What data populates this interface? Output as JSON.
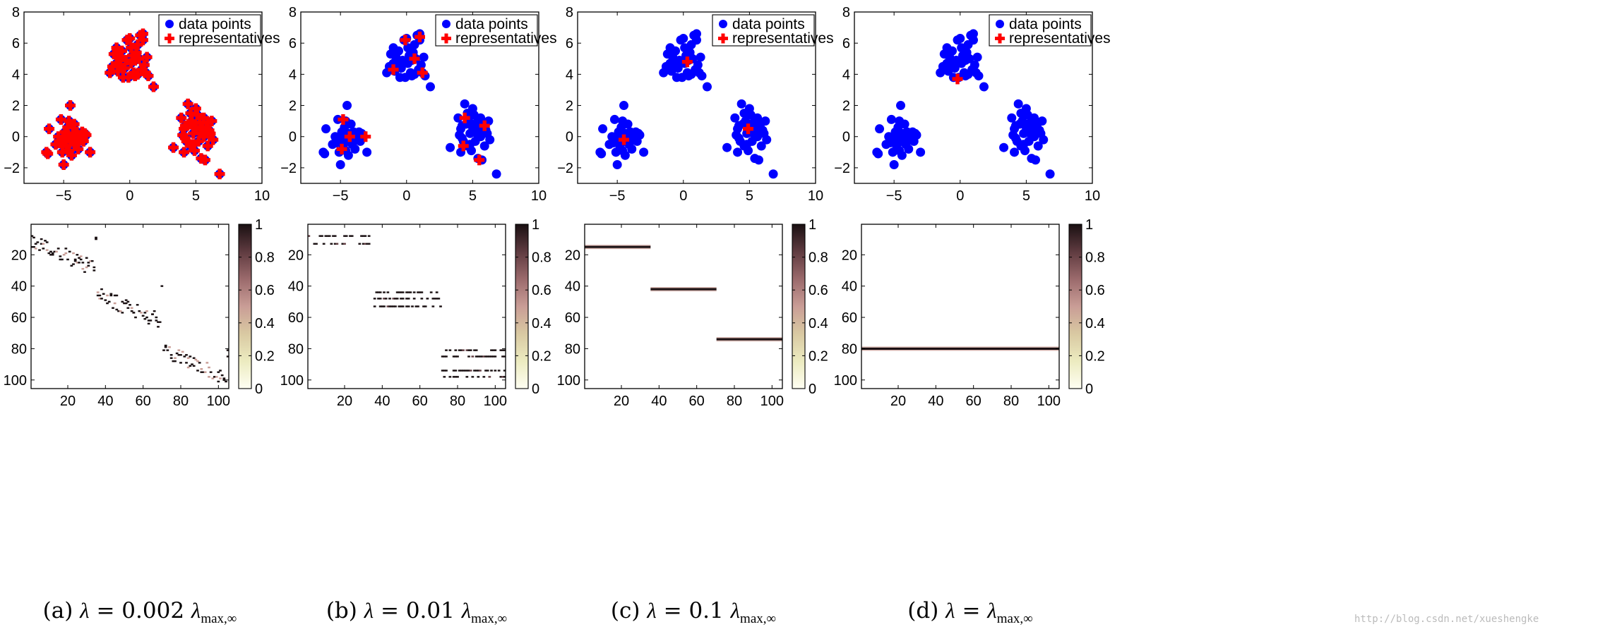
{
  "colors": {
    "data_points": "#0000ff",
    "representatives": "#ff0000",
    "colormap": [
      "#fefef2",
      "#ecebc0",
      "#d9c9a2",
      "#c99d96",
      "#9b6a6c",
      "#5f3b40",
      "#1a1012"
    ]
  },
  "chart_data": [
    {
      "type": "scatter",
      "panel": "a-top",
      "xlim": [
        -8,
        10
      ],
      "ylim": [
        -3,
        8
      ],
      "xticks": [
        "−5",
        "0",
        "5",
        "10"
      ],
      "yticks": [
        "−2",
        "0",
        "2",
        "4",
        "6",
        "8"
      ],
      "legend": {
        "placement": "top-right",
        "entries": [
          "data points",
          "representatives"
        ]
      },
      "representatives": "all"
    },
    {
      "type": "scatter",
      "panel": "b-top",
      "xlim": [
        -8,
        10
      ],
      "ylim": [
        -3,
        8
      ],
      "xticks": [
        "−5",
        "0",
        "5",
        "10"
      ],
      "yticks": [
        "−2",
        "0",
        "2",
        "4",
        "6",
        "8"
      ],
      "legend": {
        "placement": "top-right",
        "entries": [
          "data points",
          "representatives"
        ]
      },
      "representatives": [
        [
          -0.1,
          6.2
        ],
        [
          1.0,
          6.4
        ],
        [
          -1.0,
          4.3
        ],
        [
          1.2,
          4.1
        ],
        [
          0.6,
          5.0
        ],
        [
          -4.8,
          1.1
        ],
        [
          -4.9,
          -0.8
        ],
        [
          -4.3,
          0.0
        ],
        [
          -3.1,
          0.0
        ],
        [
          4.4,
          1.2
        ],
        [
          4.3,
          -0.6
        ],
        [
          5.5,
          -1.5
        ],
        [
          5.9,
          0.7
        ]
      ]
    },
    {
      "type": "scatter",
      "panel": "c-top",
      "xlim": [
        -8,
        10
      ],
      "ylim": [
        -3,
        8
      ],
      "xticks": [
        "−5",
        "0",
        "5",
        "10"
      ],
      "yticks": [
        "−2",
        "0",
        "2",
        "4",
        "6",
        "8"
      ],
      "legend": {
        "placement": "top-right",
        "entries": [
          "data points",
          "representatives"
        ]
      },
      "representatives": [
        [
          0.3,
          4.8
        ],
        [
          -4.5,
          -0.2
        ],
        [
          4.9,
          0.5
        ]
      ]
    },
    {
      "type": "scatter",
      "panel": "d-top",
      "xlim": [
        -8,
        10
      ],
      "ylim": [
        -3,
        8
      ],
      "xticks": [
        "−5",
        "0",
        "5",
        "10"
      ],
      "yticks": [
        "−2",
        "0",
        "2",
        "4",
        "6",
        "8"
      ],
      "legend": {
        "placement": "top-right",
        "entries": [
          "data points",
          "representatives"
        ]
      },
      "representatives": [
        [
          -0.2,
          3.7
        ]
      ]
    },
    {
      "type": "heatmap",
      "panel": "a-bottom",
      "size": 105,
      "xticks": [
        "20",
        "40",
        "60",
        "80",
        "100"
      ],
      "yticks": [
        "20",
        "40",
        "60",
        "80",
        "100"
      ],
      "colorbar": {
        "range": [
          0,
          1
        ],
        "ticks": [
          "0",
          "0.2",
          "0.4",
          "0.6",
          "0.8",
          "1"
        ]
      },
      "pattern": "scattered diagonal"
    },
    {
      "type": "heatmap",
      "panel": "b-bottom",
      "size": 105,
      "xticks": [
        "20",
        "40",
        "60",
        "80",
        "100"
      ],
      "yticks": [
        "20",
        "40",
        "60",
        "80",
        "100"
      ],
      "colorbar": {
        "range": [
          0,
          1
        ],
        "ticks": [
          "0",
          "0.2",
          "0.4",
          "0.6",
          "0.8",
          "1"
        ]
      },
      "pattern": "row blocks",
      "row_blocks": [
        {
          "rows": [
            8,
            13
          ],
          "cols": [
            1,
            35
          ]
        },
        {
          "rows": [
            44,
            48,
            53
          ],
          "cols": [
            36,
            71
          ]
        },
        {
          "rows": [
            81,
            85,
            94,
            98
          ],
          "cols": [
            72,
            105
          ]
        }
      ]
    },
    {
      "type": "heatmap",
      "panel": "c-bottom",
      "size": 105,
      "xticks": [
        "20",
        "40",
        "60",
        "80",
        "100"
      ],
      "yticks": [
        "20",
        "40",
        "60",
        "80",
        "100"
      ],
      "colorbar": {
        "range": [
          0,
          1
        ],
        "ticks": [
          "0",
          "0.2",
          "0.4",
          "0.6",
          "0.8",
          "1"
        ]
      },
      "pattern": "single row lines",
      "lines": [
        {
          "row": 15,
          "cols": [
            1,
            35
          ]
        },
        {
          "row": 42,
          "cols": [
            36,
            70
          ]
        },
        {
          "row": 74,
          "cols": [
            71,
            105
          ]
        }
      ]
    },
    {
      "type": "heatmap",
      "panel": "d-bottom",
      "size": 105,
      "xticks": [
        "20",
        "40",
        "60",
        "80",
        "100"
      ],
      "yticks": [
        "20",
        "40",
        "60",
        "80",
        "100"
      ],
      "colorbar": {
        "range": [
          0,
          1
        ],
        "ticks": [
          "0",
          "0.2",
          "0.4",
          "0.6",
          "0.8",
          "1"
        ]
      },
      "pattern": "single row lines",
      "lines": [
        {
          "row": 80,
          "cols": [
            1,
            105
          ]
        }
      ]
    }
  ],
  "data_points": [
    [
      -6.1,
      0.5
    ],
    [
      -6.3,
      -1.0
    ],
    [
      -6.2,
      -1.1
    ],
    [
      -5.2,
      1.1
    ],
    [
      -5.3,
      -0.4
    ],
    [
      -5.1,
      -1.0
    ],
    [
      -5.0,
      -0.1
    ],
    [
      -4.9,
      0.3
    ],
    [
      -4.8,
      -0.6
    ],
    [
      -4.7,
      0.6
    ],
    [
      -4.6,
      1.0
    ],
    [
      -4.5,
      -0.2
    ],
    [
      -4.4,
      -1.2
    ],
    [
      -4.3,
      0.2
    ],
    [
      -4.2,
      -0.4
    ],
    [
      -4.5,
      2.0
    ],
    [
      -4.0,
      0.3
    ],
    [
      -3.9,
      -0.8
    ],
    [
      -3.8,
      0.0
    ],
    [
      -3.6,
      0.3
    ],
    [
      -3.5,
      -0.3
    ],
    [
      -3.3,
      0.1
    ],
    [
      -3.0,
      -1.0
    ],
    [
      -5.0,
      -1.8
    ],
    [
      -4.1,
      0.1
    ],
    [
      -4.8,
      0.1
    ],
    [
      -5.4,
      0.0
    ],
    [
      -3.7,
      -0.2
    ],
    [
      -4.2,
      0.8
    ],
    [
      -5.6,
      -0.5
    ],
    [
      -4.9,
      -0.3
    ],
    [
      -3.4,
      0.2
    ],
    [
      -4.6,
      -0.9
    ],
    [
      -4.1,
      -0.5
    ],
    [
      -1.5,
      4.1
    ],
    [
      -1.2,
      5.3
    ],
    [
      -1.0,
      5.7
    ],
    [
      -0.9,
      4.2
    ],
    [
      -0.8,
      5.1
    ],
    [
      -0.7,
      4.6
    ],
    [
      -0.5,
      3.8
    ],
    [
      -0.4,
      4.4
    ],
    [
      -0.3,
      4.9
    ],
    [
      -0.2,
      6.2
    ],
    [
      -0.1,
      3.8
    ],
    [
      0.0,
      6.3
    ],
    [
      0.1,
      4.7
    ],
    [
      0.2,
      5.2
    ],
    [
      0.3,
      4.1
    ],
    [
      0.4,
      4.9
    ],
    [
      0.5,
      5.4
    ],
    [
      0.6,
      4.0
    ],
    [
      0.7,
      5.0
    ],
    [
      0.8,
      6.5
    ],
    [
      0.9,
      4.3
    ],
    [
      1.0,
      6.6
    ],
    [
      1.1,
      4.6
    ],
    [
      1.2,
      4.1
    ],
    [
      1.3,
      5.1
    ],
    [
      1.4,
      3.9
    ],
    [
      1.0,
      6.2
    ],
    [
      0.4,
      3.9
    ],
    [
      -1.0,
      4.7
    ],
    [
      -0.6,
      5.5
    ],
    [
      0.1,
      5.7
    ],
    [
      1.8,
      3.2
    ],
    [
      -1.3,
      4.5
    ],
    [
      0.6,
      5.9
    ],
    [
      3.3,
      -0.7
    ],
    [
      3.9,
      1.2
    ],
    [
      4.0,
      0.1
    ],
    [
      4.1,
      -1.0
    ],
    [
      4.2,
      0.7
    ],
    [
      4.3,
      -0.3
    ],
    [
      4.4,
      2.1
    ],
    [
      4.5,
      0.8
    ],
    [
      4.6,
      -0.6
    ],
    [
      4.7,
      1.0
    ],
    [
      4.8,
      0.2
    ],
    [
      4.9,
      -0.9
    ],
    [
      5.0,
      0.6
    ],
    [
      5.1,
      1.4
    ],
    [
      5.2,
      -0.3
    ],
    [
      5.3,
      0.9
    ],
    [
      5.4,
      -1.4
    ],
    [
      5.5,
      0.5
    ],
    [
      5.6,
      0.0
    ],
    [
      5.7,
      -1.5
    ],
    [
      5.8,
      0.6
    ],
    [
      5.9,
      0.9
    ],
    [
      6.1,
      0.2
    ],
    [
      6.2,
      1.0
    ],
    [
      6.3,
      -0.2
    ],
    [
      6.8,
      -2.4
    ],
    [
      4.1,
      0.5
    ],
    [
      5.0,
      1.8
    ],
    [
      4.6,
      1.5
    ],
    [
      5.3,
      0.2
    ],
    [
      4.2,
      -0.1
    ],
    [
      5.9,
      -0.6
    ],
    [
      4.8,
      -0.5
    ],
    [
      5.6,
      1.2
    ],
    [
      6.0,
      0.4
    ]
  ],
  "captions": [
    {
      "label": "(a)",
      "lambda": "λ",
      "eq": " = 0.002 ",
      "lmax": "λ",
      "sub": "max,∞"
    },
    {
      "label": "(b)",
      "lambda": "λ",
      "eq": " = 0.01 ",
      "lmax": "λ",
      "sub": "max,∞"
    },
    {
      "label": "(c)",
      "lambda": "λ",
      "eq": " = 0.1 ",
      "lmax": "λ",
      "sub": "max,∞"
    },
    {
      "label": "(d)",
      "lambda": "λ",
      "eq": " = ",
      "lmax": "λ",
      "sub": "max,∞"
    }
  ],
  "watermark": "http://blog.csdn.net/xueshengke"
}
